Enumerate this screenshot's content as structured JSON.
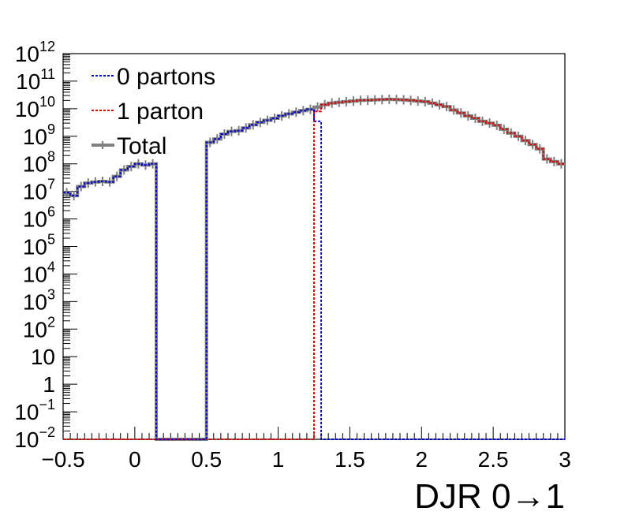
{
  "chart_data": {
    "type": "line",
    "title": "",
    "xlabel": "DJR 0→1",
    "ylabel": "",
    "xlim": [
      -0.5,
      3
    ],
    "ylim": [
      0.01,
      1000000000000.0
    ],
    "yscale": "log",
    "grid": false,
    "legend_position": "top-left",
    "x_ticks": [
      {
        "value": -0.5,
        "label": "−0.5"
      },
      {
        "value": 0,
        "label": "0"
      },
      {
        "value": 0.5,
        "label": "0.5"
      },
      {
        "value": 1,
        "label": "1"
      },
      {
        "value": 1.5,
        "label": "1.5"
      },
      {
        "value": 2,
        "label": "2"
      },
      {
        "value": 2.5,
        "label": "2.5"
      },
      {
        "value": 3,
        "label": "3"
      }
    ],
    "y_ticks": [
      {
        "value": 1000000000000.0,
        "base": "10",
        "exp": "12"
      },
      {
        "value": 100000000000.0,
        "base": "10",
        "exp": "11"
      },
      {
        "value": 10000000000.0,
        "base": "10",
        "exp": "10"
      },
      {
        "value": 1000000000.0,
        "base": "10",
        "exp": "9"
      },
      {
        "value": 100000000.0,
        "base": "10",
        "exp": "8"
      },
      {
        "value": 10000000.0,
        "base": "10",
        "exp": "7"
      },
      {
        "value": 1000000.0,
        "base": "10",
        "exp": "6"
      },
      {
        "value": 100000.0,
        "base": "10",
        "exp": "5"
      },
      {
        "value": 10000.0,
        "base": "10",
        "exp": "4"
      },
      {
        "value": 1000.0,
        "base": "10",
        "exp": "3"
      },
      {
        "value": 100.0,
        "base": "10",
        "exp": "2"
      },
      {
        "value": 10,
        "base": "10",
        "exp": ""
      },
      {
        "value": 1,
        "base": "1",
        "exp": ""
      },
      {
        "value": 0.1,
        "base": "10",
        "exp": "−1"
      },
      {
        "value": 0.01,
        "base": "10",
        "exp": "−2"
      }
    ],
    "series": [
      {
        "name": "0 partons",
        "color": "#0000cc",
        "style": "dotted",
        "points": [
          [
            -0.5,
            9000000
          ],
          [
            -0.45,
            7000000
          ],
          [
            -0.4,
            15000000.0
          ],
          [
            -0.35,
            20000000.0
          ],
          [
            -0.3,
            22000000.0
          ],
          [
            -0.25,
            23000000.0
          ],
          [
            -0.2,
            22000000.0
          ],
          [
            -0.15,
            35000000.0
          ],
          [
            -0.1,
            60000000.0
          ],
          [
            -0.05,
            80000000.0
          ],
          [
            0.0,
            100000000.0
          ],
          [
            0.05,
            90000000.0
          ],
          [
            0.1,
            100000000.0
          ],
          [
            0.15,
            0.01
          ],
          [
            0.2,
            0.01
          ],
          [
            0.25,
            0.01
          ],
          [
            0.3,
            0.01
          ],
          [
            0.35,
            0.01
          ],
          [
            0.4,
            0.01
          ],
          [
            0.45,
            0.01
          ],
          [
            0.5,
            600000000.0
          ],
          [
            0.55,
            800000000.0
          ],
          [
            0.6,
            1200000000.0
          ],
          [
            0.65,
            1500000000.0
          ],
          [
            0.7,
            1600000000.0
          ],
          [
            0.75,
            2000000000.0
          ],
          [
            0.8,
            2600000000.0
          ],
          [
            0.85,
            3200000000.0
          ],
          [
            0.9,
            3800000000.0
          ],
          [
            0.95,
            4500000000.0
          ],
          [
            1.0,
            5500000000.0
          ],
          [
            1.05,
            6500000000.0
          ],
          [
            1.1,
            7500000000.0
          ],
          [
            1.15,
            8500000000.0
          ],
          [
            1.2,
            9500000000.0
          ],
          [
            1.25,
            3500000000.0
          ],
          [
            1.3,
            0.01
          ],
          [
            1.35,
            0.01
          ],
          [
            1.4,
            0.01
          ],
          [
            1.45,
            0.01
          ],
          [
            1.5,
            0.01
          ],
          [
            1.55,
            0.01
          ],
          [
            1.6,
            0.01
          ],
          [
            1.65,
            0.01
          ],
          [
            1.7,
            0.01
          ],
          [
            1.75,
            0.01
          ],
          [
            1.8,
            0.01
          ],
          [
            1.85,
            0.01
          ],
          [
            1.9,
            0.01
          ],
          [
            1.95,
            0.01
          ],
          [
            2.0,
            0.01
          ],
          [
            2.05,
            0.01
          ],
          [
            2.1,
            0.01
          ],
          [
            2.15,
            0.01
          ],
          [
            2.2,
            0.01
          ],
          [
            2.25,
            0.01
          ],
          [
            2.3,
            0.01
          ],
          [
            2.35,
            0.01
          ],
          [
            2.4,
            0.01
          ],
          [
            2.45,
            0.01
          ],
          [
            2.5,
            0.01
          ],
          [
            2.55,
            0.01
          ],
          [
            2.6,
            0.01
          ],
          [
            2.65,
            0.01
          ],
          [
            2.7,
            0.01
          ],
          [
            2.75,
            0.01
          ],
          [
            2.8,
            0.01
          ],
          [
            2.85,
            0.01
          ],
          [
            2.9,
            0.01
          ],
          [
            2.95,
            0.01
          ]
        ]
      },
      {
        "name": "1 parton",
        "color": "#dd0000",
        "style": "dotted",
        "points": [
          [
            -0.5,
            0.01
          ],
          [
            -0.45,
            0.01
          ],
          [
            -0.4,
            0.01
          ],
          [
            -0.35,
            0.01
          ],
          [
            -0.3,
            0.01
          ],
          [
            -0.25,
            0.01
          ],
          [
            -0.2,
            0.01
          ],
          [
            -0.15,
            0.01
          ],
          [
            -0.1,
            0.01
          ],
          [
            -0.05,
            0.01
          ],
          [
            0.0,
            0.01
          ],
          [
            0.05,
            0.01
          ],
          [
            0.1,
            0.01
          ],
          [
            0.15,
            0.01
          ],
          [
            0.2,
            0.01
          ],
          [
            0.25,
            0.01
          ],
          [
            0.3,
            0.01
          ],
          [
            0.35,
            0.01
          ],
          [
            0.4,
            0.01
          ],
          [
            0.45,
            0.01
          ],
          [
            0.5,
            0.01
          ],
          [
            0.55,
            0.01
          ],
          [
            0.6,
            0.01
          ],
          [
            0.65,
            0.01
          ],
          [
            0.7,
            0.01
          ],
          [
            0.75,
            0.01
          ],
          [
            0.8,
            0.01
          ],
          [
            0.85,
            0.01
          ],
          [
            0.9,
            0.01
          ],
          [
            0.95,
            0.01
          ],
          [
            1.0,
            0.01
          ],
          [
            1.05,
            0.01
          ],
          [
            1.1,
            0.01
          ],
          [
            1.15,
            0.01
          ],
          [
            1.2,
            0.01
          ],
          [
            1.25,
            8000000000.0
          ],
          [
            1.3,
            14000000000.0
          ],
          [
            1.35,
            16000000000.0
          ],
          [
            1.4,
            17000000000.0
          ],
          [
            1.45,
            18000000000.0
          ],
          [
            1.5,
            19000000000.0
          ],
          [
            1.55,
            20000000000.0
          ],
          [
            1.6,
            20500000000.0
          ],
          [
            1.65,
            21000000000.0
          ],
          [
            1.7,
            21500000000.0
          ],
          [
            1.75,
            22000000000.0
          ],
          [
            1.8,
            21500000000.0
          ],
          [
            1.85,
            21000000000.0
          ],
          [
            1.9,
            20000000000.0
          ],
          [
            1.95,
            19000000000.0
          ],
          [
            2.0,
            18000000000.0
          ],
          [
            2.05,
            16000000000.0
          ],
          [
            2.1,
            14000000000.0
          ],
          [
            2.15,
            12000000000.0
          ],
          [
            2.2,
            9000000000.0
          ],
          [
            2.25,
            7000000000.0
          ],
          [
            2.3,
            5500000000.0
          ],
          [
            2.35,
            4500000000.0
          ],
          [
            2.4,
            3500000000.0
          ],
          [
            2.45,
            3000000000.0
          ],
          [
            2.5,
            2500000000.0
          ],
          [
            2.55,
            1800000000.0
          ],
          [
            2.6,
            1300000000.0
          ],
          [
            2.65,
            1000000000.0
          ],
          [
            2.7,
            700000000.0
          ],
          [
            2.75,
            500000000.0
          ],
          [
            2.8,
            350000000.0
          ],
          [
            2.85,
            150000000.0
          ],
          [
            2.9,
            120000000.0
          ],
          [
            2.95,
            100000000.0
          ]
        ]
      },
      {
        "name": "Total",
        "color": "#7f7f7f",
        "style": "solid",
        "points": [
          [
            -0.5,
            9000000
          ],
          [
            -0.45,
            7000000
          ],
          [
            -0.4,
            15000000.0
          ],
          [
            -0.35,
            20000000.0
          ],
          [
            -0.3,
            22000000.0
          ],
          [
            -0.25,
            23000000.0
          ],
          [
            -0.2,
            22000000.0
          ],
          [
            -0.15,
            35000000.0
          ],
          [
            -0.1,
            60000000.0
          ],
          [
            -0.05,
            80000000.0
          ],
          [
            0.0,
            100000000.0
          ],
          [
            0.05,
            90000000.0
          ],
          [
            0.1,
            100000000.0
          ],
          [
            0.15,
            0.01
          ],
          [
            0.2,
            0.01
          ],
          [
            0.25,
            0.01
          ],
          [
            0.3,
            0.01
          ],
          [
            0.35,
            0.01
          ],
          [
            0.4,
            0.01
          ],
          [
            0.45,
            0.01
          ],
          [
            0.5,
            600000000.0
          ],
          [
            0.55,
            800000000.0
          ],
          [
            0.6,
            1200000000.0
          ],
          [
            0.65,
            1500000000.0
          ],
          [
            0.7,
            1600000000.0
          ],
          [
            0.75,
            2000000000.0
          ],
          [
            0.8,
            2600000000.0
          ],
          [
            0.85,
            3200000000.0
          ],
          [
            0.9,
            3800000000.0
          ],
          [
            0.95,
            4500000000.0
          ],
          [
            1.0,
            5500000000.0
          ],
          [
            1.05,
            6500000000.0
          ],
          [
            1.1,
            7500000000.0
          ],
          [
            1.15,
            8500000000.0
          ],
          [
            1.2,
            9500000000.0
          ],
          [
            1.25,
            11500000000.0
          ],
          [
            1.3,
            14000000000.0
          ],
          [
            1.35,
            16000000000.0
          ],
          [
            1.4,
            17000000000.0
          ],
          [
            1.45,
            18000000000.0
          ],
          [
            1.5,
            19000000000.0
          ],
          [
            1.55,
            20000000000.0
          ],
          [
            1.6,
            20500000000.0
          ],
          [
            1.65,
            21000000000.0
          ],
          [
            1.7,
            21500000000.0
          ],
          [
            1.75,
            22000000000.0
          ],
          [
            1.8,
            21500000000.0
          ],
          [
            1.85,
            21000000000.0
          ],
          [
            1.9,
            20000000000.0
          ],
          [
            1.95,
            19000000000.0
          ],
          [
            2.0,
            18000000000.0
          ],
          [
            2.05,
            16000000000.0
          ],
          [
            2.1,
            14000000000.0
          ],
          [
            2.15,
            12000000000.0
          ],
          [
            2.2,
            9000000000.0
          ],
          [
            2.25,
            7000000000.0
          ],
          [
            2.3,
            5500000000.0
          ],
          [
            2.35,
            4500000000.0
          ],
          [
            2.4,
            3500000000.0
          ],
          [
            2.45,
            3000000000.0
          ],
          [
            2.5,
            2500000000.0
          ],
          [
            2.55,
            1800000000.0
          ],
          [
            2.6,
            1300000000.0
          ],
          [
            2.65,
            1000000000.0
          ],
          [
            2.7,
            700000000.0
          ],
          [
            2.75,
            500000000.0
          ],
          [
            2.8,
            350000000.0
          ],
          [
            2.85,
            150000000.0
          ],
          [
            2.9,
            120000000.0
          ],
          [
            2.95,
            100000000.0
          ]
        ]
      }
    ],
    "legend": [
      {
        "label": "0 partons",
        "color": "#0000cc",
        "style": "dotted"
      },
      {
        "label": "1 parton",
        "color": "#dd0000",
        "style": "dotted"
      },
      {
        "label": "Total",
        "color": "#7f7f7f",
        "style": "solid"
      }
    ]
  }
}
